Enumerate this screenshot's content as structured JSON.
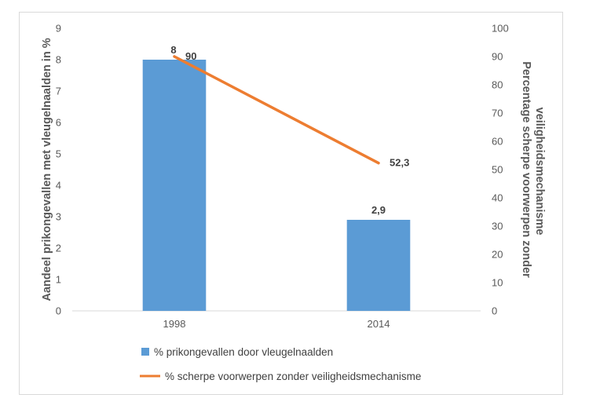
{
  "chart_data": {
    "type": "bar+line",
    "categories": [
      "1998",
      "2014"
    ],
    "series": [
      {
        "name": "% prikongevallen door vleugelnaalden",
        "type": "bar",
        "axis": "left",
        "values": [
          8,
          2.9
        ],
        "labels": [
          "8",
          "2,9"
        ],
        "color": "#5b9bd5"
      },
      {
        "name": "% scherpe voorwerpen zonder veiligheidsmechanisme",
        "type": "line",
        "axis": "right",
        "values": [
          90,
          52.3
        ],
        "labels": [
          "90",
          "52,3"
        ],
        "color": "#ed7d31"
      }
    ],
    "y_left": {
      "label": "Aandeel prikongevallen met vleugelnaalden in %",
      "range": [
        0,
        9
      ],
      "ticks": [
        "0",
        "1",
        "2",
        "3",
        "4",
        "5",
        "6",
        "7",
        "8",
        "9"
      ]
    },
    "y_right": {
      "label_lines": [
        "Percentage scherpe voorwerpen zonder",
        "veiligheidsmechanisme"
      ],
      "range": [
        0,
        100
      ],
      "ticks": [
        "0",
        "10",
        "20",
        "30",
        "40",
        "50",
        "60",
        "70",
        "80",
        "90",
        "100"
      ]
    },
    "grid": false,
    "legend_position": "bottom"
  }
}
